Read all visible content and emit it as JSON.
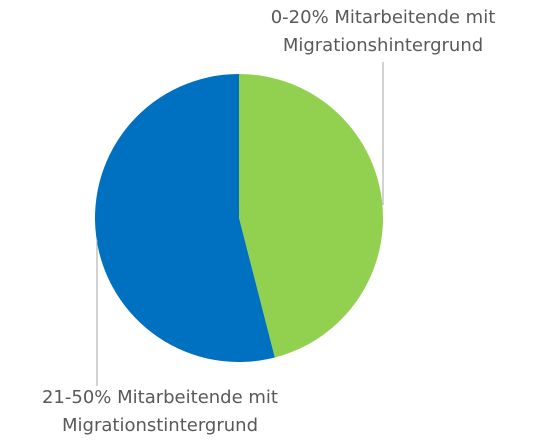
{
  "chart_data": {
    "type": "pie",
    "categories": [
      "0-20% Mitarbeitende mit Migrationshintergrund",
      "21-50% Mitarbeitende mit Migrationstintergrund"
    ],
    "values": [
      46,
      54
    ],
    "colors": [
      "#92d050",
      "#0070c0"
    ]
  }
}
